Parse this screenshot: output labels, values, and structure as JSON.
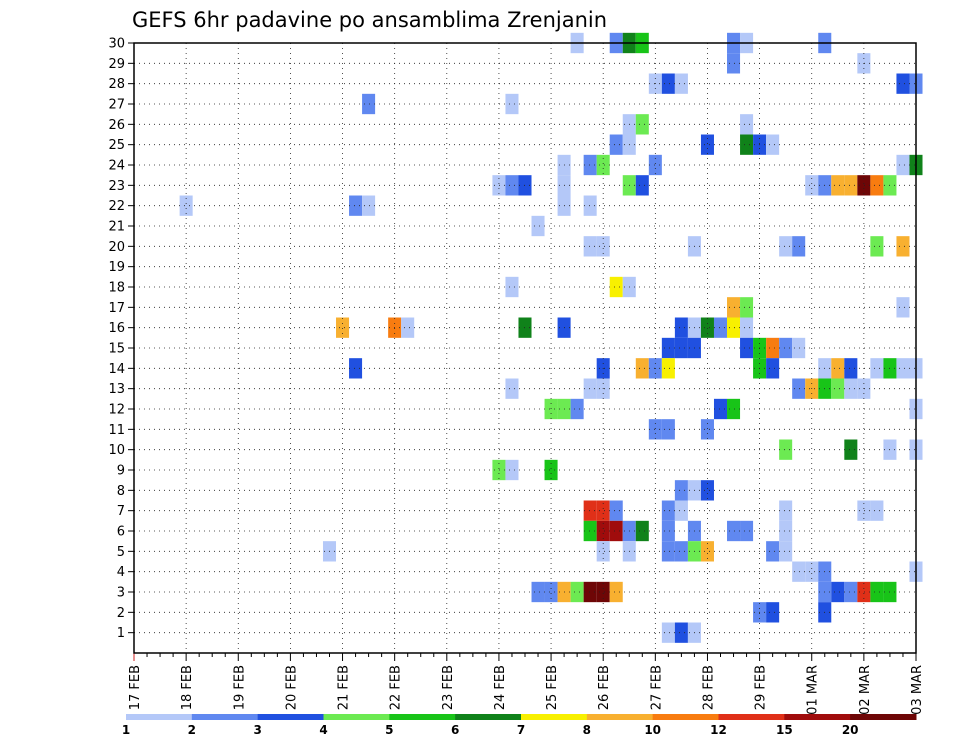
{
  "chart_data": {
    "type": "heatmap",
    "title": "GEFS 6hr padavine po ansamblima Zrenjanin",
    "x_tick_labels": [
      "17 FEB",
      "18 FEB",
      "19 FEB",
      "20 FEB",
      "21 FEB",
      "22 FEB",
      "23 FEB",
      "24 FEB",
      "25 FEB",
      "26 FEB",
      "27 FEB",
      "28 FEB",
      "29 FEB",
      "01 MAR",
      "02 MAR",
      "03 MAR"
    ],
    "y_tick_labels": [
      "1",
      "2",
      "3",
      "4",
      "5",
      "6",
      "7",
      "8",
      "9",
      "10",
      "11",
      "12",
      "13",
      "14",
      "15",
      "16",
      "17",
      "18",
      "19",
      "20",
      "21",
      "22",
      "23",
      "24",
      "25",
      "26",
      "27",
      "28",
      "29",
      "30"
    ],
    "x_unit": "6-hour step from 17 FEB 00Z",
    "y_unit": "ensemble member",
    "xlim": [
      0,
      60
    ],
    "ylim": [
      0,
      30
    ],
    "grid": true,
    "colorbar": {
      "position": "bottom",
      "tick_labels": [
        "1",
        "2",
        "3",
        "4",
        "5",
        "6",
        "7",
        "8",
        "10",
        "12",
        "15",
        "20"
      ],
      "colors": [
        "#b4c8f8",
        "#6088f0",
        "#2050e0",
        "#6cea52",
        "#18c418",
        "#10821a",
        "#f8f000",
        "#f8b030",
        "#f87c10",
        "#e03018",
        "#a00c0c",
        "#6e0606"
      ]
    },
    "cells": [
      [
        34,
        30,
        1
      ],
      [
        37,
        30,
        2
      ],
      [
        38,
        30,
        6
      ],
      [
        39,
        30,
        5
      ],
      [
        46,
        30,
        2
      ],
      [
        47,
        30,
        1
      ],
      [
        53,
        30,
        2
      ],
      [
        46,
        29,
        2
      ],
      [
        56,
        29,
        1
      ],
      [
        40,
        28,
        1
      ],
      [
        41,
        28,
        3
      ],
      [
        42,
        28,
        1
      ],
      [
        59,
        28,
        3
      ],
      [
        60,
        28,
        2
      ],
      [
        18,
        27,
        2
      ],
      [
        29,
        27,
        1
      ],
      [
        38,
        26,
        1
      ],
      [
        39,
        26,
        4
      ],
      [
        47,
        26,
        1
      ],
      [
        37,
        25,
        2
      ],
      [
        38,
        25,
        1
      ],
      [
        44,
        25,
        3
      ],
      [
        47,
        25,
        6
      ],
      [
        48,
        25,
        3
      ],
      [
        49,
        25,
        1
      ],
      [
        33,
        24,
        1
      ],
      [
        35,
        24,
        2
      ],
      [
        36,
        24,
        4
      ],
      [
        40,
        24,
        2
      ],
      [
        59,
        24,
        1
      ],
      [
        60,
        24,
        6
      ],
      [
        28,
        23,
        1
      ],
      [
        29,
        23,
        2
      ],
      [
        30,
        23,
        3
      ],
      [
        33,
        23,
        1
      ],
      [
        38,
        23,
        4
      ],
      [
        39,
        23,
        3
      ],
      [
        52,
        23,
        1
      ],
      [
        53,
        23,
        2
      ],
      [
        54,
        23,
        8
      ],
      [
        55,
        23,
        8
      ],
      [
        56,
        23,
        12
      ],
      [
        57,
        23,
        9
      ],
      [
        58,
        23,
        4
      ],
      [
        4,
        22,
        1
      ],
      [
        17,
        22,
        2
      ],
      [
        18,
        22,
        1
      ],
      [
        33,
        22,
        1
      ],
      [
        35,
        22,
        1
      ],
      [
        31,
        21,
        1
      ],
      [
        35,
        20,
        1
      ],
      [
        36,
        20,
        1
      ],
      [
        43,
        20,
        1
      ],
      [
        50,
        20,
        1
      ],
      [
        51,
        20,
        2
      ],
      [
        57,
        20,
        4
      ],
      [
        59,
        20,
        8
      ],
      [
        29,
        18,
        1
      ],
      [
        37,
        18,
        7
      ],
      [
        38,
        18,
        1
      ],
      [
        46,
        17,
        8
      ],
      [
        47,
        17,
        4
      ],
      [
        59,
        17,
        1
      ],
      [
        16,
        16,
        8
      ],
      [
        20,
        16,
        9
      ],
      [
        21,
        16,
        1
      ],
      [
        30,
        16,
        6
      ],
      [
        33,
        16,
        3
      ],
      [
        42,
        16,
        3
      ],
      [
        43,
        16,
        1
      ],
      [
        44,
        16,
        6
      ],
      [
        45,
        16,
        2
      ],
      [
        46,
        16,
        7
      ],
      [
        47,
        16,
        1
      ],
      [
        41,
        15,
        3
      ],
      [
        42,
        15,
        3
      ],
      [
        43,
        15,
        3
      ],
      [
        47,
        15,
        3
      ],
      [
        48,
        15,
        5
      ],
      [
        49,
        15,
        9
      ],
      [
        50,
        15,
        2
      ],
      [
        51,
        15,
        1
      ],
      [
        17,
        14,
        3
      ],
      [
        36,
        14,
        3
      ],
      [
        39,
        14,
        8
      ],
      [
        40,
        14,
        2
      ],
      [
        41,
        14,
        7
      ],
      [
        48,
        14,
        5
      ],
      [
        49,
        14,
        3
      ],
      [
        53,
        14,
        1
      ],
      [
        54,
        14,
        8
      ],
      [
        55,
        14,
        3
      ],
      [
        57,
        14,
        1
      ],
      [
        58,
        14,
        5
      ],
      [
        59,
        14,
        1
      ],
      [
        60,
        14,
        1
      ],
      [
        29,
        13,
        1
      ],
      [
        35,
        13,
        1
      ],
      [
        36,
        13,
        1
      ],
      [
        51,
        13,
        2
      ],
      [
        52,
        13,
        8
      ],
      [
        53,
        13,
        5
      ],
      [
        54,
        13,
        4
      ],
      [
        55,
        13,
        1
      ],
      [
        56,
        13,
        1
      ],
      [
        32,
        12,
        4
      ],
      [
        33,
        12,
        4
      ],
      [
        34,
        12,
        2
      ],
      [
        45,
        12,
        3
      ],
      [
        46,
        12,
        5
      ],
      [
        60,
        12,
        1
      ],
      [
        40,
        11,
        2
      ],
      [
        41,
        11,
        2
      ],
      [
        44,
        11,
        2
      ],
      [
        50,
        10,
        4
      ],
      [
        55,
        10,
        6
      ],
      [
        58,
        10,
        1
      ],
      [
        60,
        10,
        1
      ],
      [
        28,
        9,
        4
      ],
      [
        29,
        9,
        1
      ],
      [
        32,
        9,
        5
      ],
      [
        42,
        8,
        2
      ],
      [
        43,
        8,
        1
      ],
      [
        44,
        8,
        3
      ],
      [
        35,
        7,
        10
      ],
      [
        36,
        7,
        10
      ],
      [
        37,
        7,
        2
      ],
      [
        41,
        7,
        2
      ],
      [
        42,
        7,
        1
      ],
      [
        50,
        7,
        1
      ],
      [
        56,
        7,
        1
      ],
      [
        57,
        7,
        1
      ],
      [
        35,
        6,
        5
      ],
      [
        36,
        6,
        11
      ],
      [
        37,
        6,
        11
      ],
      [
        38,
        6,
        2
      ],
      [
        39,
        6,
        6
      ],
      [
        41,
        6,
        2
      ],
      [
        43,
        6,
        2
      ],
      [
        46,
        6,
        2
      ],
      [
        47,
        6,
        2
      ],
      [
        50,
        6,
        1
      ],
      [
        15,
        5,
        1
      ],
      [
        36,
        5,
        1
      ],
      [
        38,
        5,
        1
      ],
      [
        41,
        5,
        2
      ],
      [
        42,
        5,
        2
      ],
      [
        43,
        5,
        4
      ],
      [
        44,
        5,
        8
      ],
      [
        49,
        5,
        2
      ],
      [
        50,
        5,
        1
      ],
      [
        51,
        4,
        1
      ],
      [
        52,
        4,
        1
      ],
      [
        53,
        4,
        2
      ],
      [
        60,
        4,
        1
      ],
      [
        31,
        3,
        2
      ],
      [
        32,
        3,
        2
      ],
      [
        33,
        3,
        8
      ],
      [
        34,
        3,
        4
      ],
      [
        35,
        3,
        12
      ],
      [
        36,
        3,
        12
      ],
      [
        37,
        3,
        8
      ],
      [
        53,
        3,
        2
      ],
      [
        54,
        3,
        3
      ],
      [
        55,
        3,
        2
      ],
      [
        56,
        3,
        10
      ],
      [
        57,
        3,
        5
      ],
      [
        58,
        3,
        5
      ],
      [
        48,
        2,
        2
      ],
      [
        49,
        2,
        3
      ],
      [
        53,
        2,
        3
      ],
      [
        41,
        1,
        1
      ],
      [
        42,
        1,
        3
      ],
      [
        43,
        1,
        1
      ]
    ]
  }
}
